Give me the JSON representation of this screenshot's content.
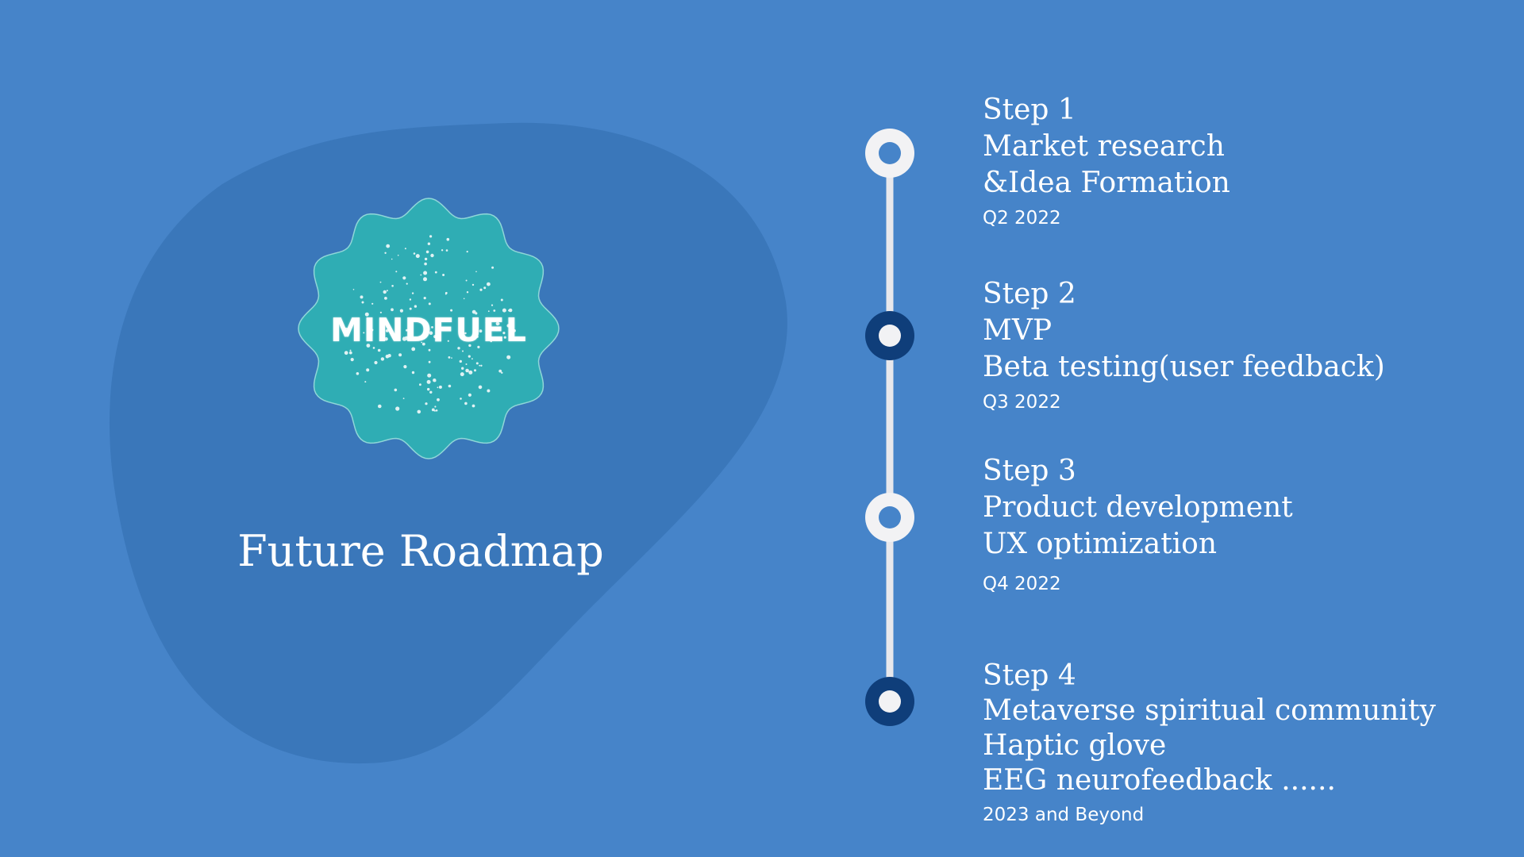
{
  "logo": {
    "text": "MINDFUEL",
    "color": "#2fadb4"
  },
  "title": "Future Roadmap",
  "colors": {
    "background": "#4684c9",
    "blob": "#3a77ba",
    "timeline_line": "#e8e8ec",
    "node_light": "#f2f2f4",
    "node_dark": "#0f3e7a"
  },
  "steps": [
    {
      "label": "Step 1",
      "lines": [
        "Market research",
        "&Idea Formation"
      ],
      "date": "Q2 2022",
      "node": "light"
    },
    {
      "label": "Step 2",
      "lines": [
        "MVP",
        "Beta testing(user feedback)"
      ],
      "date": "Q3 2022",
      "node": "dark"
    },
    {
      "label": "Step 3",
      "lines": [
        "Product development",
        "UX optimization"
      ],
      "date": "Q4 2022",
      "node": "light"
    },
    {
      "label": "Step 4",
      "lines": [
        "Metaverse spiritual community",
        "Haptic glove",
        "EEG neurofeedback ......"
      ],
      "date": "2023 and Beyond",
      "node": "dark"
    }
  ]
}
